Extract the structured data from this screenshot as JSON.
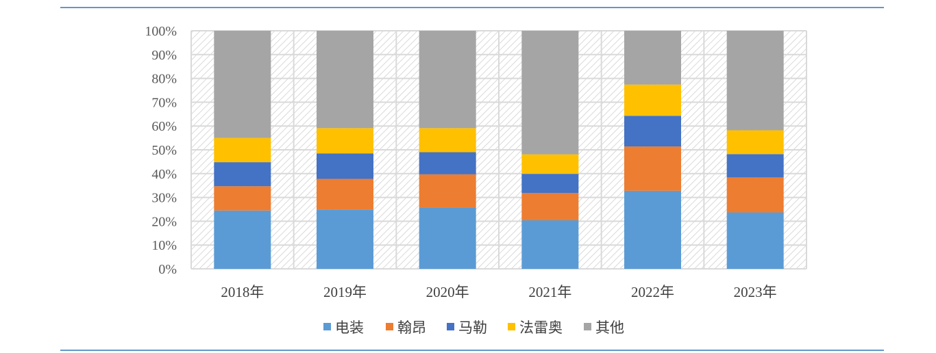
{
  "chart_data": {
    "type": "bar",
    "stacked": true,
    "categories": [
      "2018年",
      "2019年",
      "2020年",
      "2021年",
      "2022年",
      "2023年"
    ],
    "series": [
      {
        "name": "电装",
        "color": "#5B9BD5",
        "values": [
          24.5,
          24.9,
          25.7,
          20.4,
          32.8,
          23.7
        ]
      },
      {
        "name": "翰昂",
        "color": "#ED7D31",
        "values": [
          10.2,
          12.9,
          14.0,
          11.5,
          18.6,
          14.7
        ]
      },
      {
        "name": "马勒",
        "color": "#4472C4",
        "values": [
          10.1,
          10.7,
          9.3,
          8.0,
          12.9,
          9.8
        ]
      },
      {
        "name": "法雷奥",
        "color": "#FFC000",
        "values": [
          10.2,
          10.6,
          10.1,
          8.2,
          13.1,
          10.0
        ]
      },
      {
        "name": "其他",
        "color": "#A5A5A5",
        "values": [
          45.0,
          40.9,
          40.9,
          51.9,
          22.6,
          41.8
        ]
      }
    ],
    "ylim": [
      0,
      100
    ],
    "yticks": [
      "0%",
      "10%",
      "20%",
      "30%",
      "40%",
      "50%",
      "60%",
      "70%",
      "80%",
      "90%",
      "100%"
    ],
    "grid": true,
    "legend": "bottom",
    "title": "",
    "xlabel": "",
    "ylabel": ""
  },
  "page": {
    "rule_color": "#2E75B6"
  }
}
